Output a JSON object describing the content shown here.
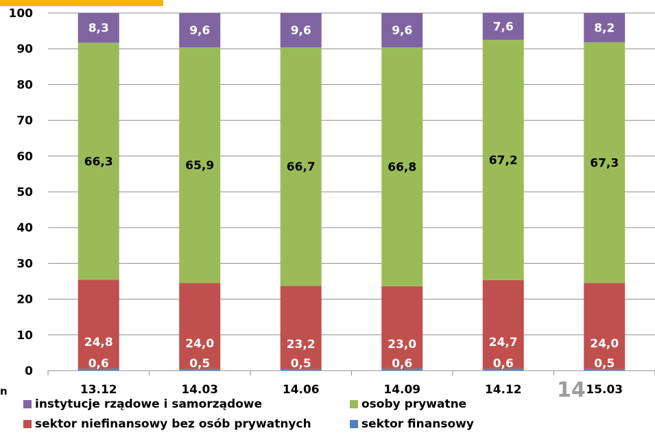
{
  "edge_fragment": "n",
  "page_number": "14",
  "chart_data": {
    "type": "bar",
    "stacked": true,
    "categories": [
      "13.12",
      "14.03",
      "14.06",
      "14.09",
      "14.12",
      "15.03"
    ],
    "ylim": [
      0,
      100
    ],
    "yticks": [
      0,
      10,
      20,
      30,
      40,
      50,
      60,
      70,
      80,
      90,
      100
    ],
    "grid": true,
    "legend_position": "bottom",
    "series": [
      {
        "name": "sektor finansowy",
        "color": "#4f81bd",
        "values": [
          0.6,
          0.5,
          0.5,
          0.6,
          0.6,
          0.5
        ],
        "labels": [
          "0,6",
          "0,5",
          "0,5",
          "0,6",
          "0,6",
          "0,5"
        ]
      },
      {
        "name": "sektor niefinansowy bez osób prywatnych",
        "color": "#c0504d",
        "values": [
          24.8,
          24.0,
          23.2,
          23.0,
          24.7,
          24.0
        ],
        "labels": [
          "24,8",
          "24,0",
          "23,2",
          "23,0",
          "24,7",
          "24,0"
        ]
      },
      {
        "name": "osoby prywatne",
        "color": "#9bbb59",
        "values": [
          66.3,
          65.9,
          66.7,
          66.8,
          67.2,
          67.3
        ],
        "labels": [
          "66,3",
          "65,9",
          "66,7",
          "66,8",
          "67,2",
          "67,3"
        ]
      },
      {
        "name": "instytucje rządowe i samorządowe",
        "color": "#8064a2",
        "values": [
          8.3,
          9.6,
          9.6,
          9.6,
          7.6,
          8.2
        ],
        "labels": [
          "8,3",
          "9,6",
          "9,6",
          "9,6",
          "7,6",
          "8,2"
        ]
      }
    ]
  }
}
